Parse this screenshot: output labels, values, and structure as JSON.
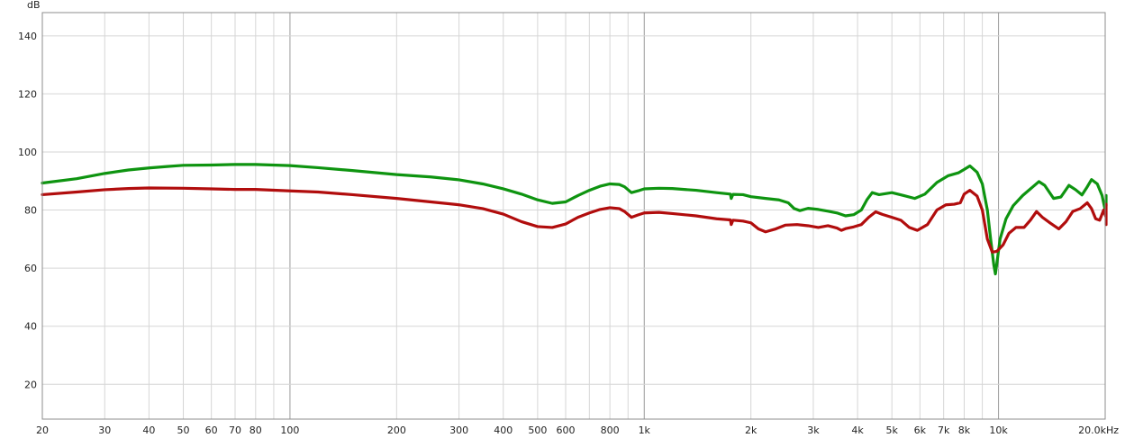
{
  "chart_data": {
    "type": "line",
    "title": "",
    "xlabel": "",
    "ylabel": "",
    "y_unit": "dB",
    "x_scale": "log",
    "xlim": [
      20,
      20000
    ],
    "ylim": [
      8,
      148
    ],
    "grid": true,
    "x_ticks": [
      {
        "value": 20,
        "label": "20"
      },
      {
        "value": 30,
        "label": "30"
      },
      {
        "value": 40,
        "label": "40"
      },
      {
        "value": 50,
        "label": "50"
      },
      {
        "value": 60,
        "label": "60"
      },
      {
        "value": 70,
        "label": "70"
      },
      {
        "value": 80,
        "label": "80"
      },
      {
        "value": 90,
        "label": ""
      },
      {
        "value": 100,
        "label": "100"
      },
      {
        "value": 200,
        "label": "200"
      },
      {
        "value": 300,
        "label": "300"
      },
      {
        "value": 400,
        "label": "400"
      },
      {
        "value": 500,
        "label": "500"
      },
      {
        "value": 600,
        "label": "600"
      },
      {
        "value": 700,
        "label": ""
      },
      {
        "value": 800,
        "label": "800"
      },
      {
        "value": 900,
        "label": ""
      },
      {
        "value": 1000,
        "label": "1k"
      },
      {
        "value": 2000,
        "label": "2k"
      },
      {
        "value": 3000,
        "label": "3k"
      },
      {
        "value": 4000,
        "label": "4k"
      },
      {
        "value": 5000,
        "label": "5k"
      },
      {
        "value": 6000,
        "label": "6k"
      },
      {
        "value": 7000,
        "label": "7k"
      },
      {
        "value": 8000,
        "label": "8k"
      },
      {
        "value": 9000,
        "label": ""
      },
      {
        "value": 10000,
        "label": "10k"
      },
      {
        "value": 20000,
        "label": "20.0kHz"
      }
    ],
    "y_ticks": [
      20,
      40,
      60,
      80,
      100,
      120,
      140
    ],
    "series": [
      {
        "color": "#0e9410",
        "points": [
          [
            20,
            89.3
          ],
          [
            25,
            90.8
          ],
          [
            30,
            92.6
          ],
          [
            35,
            93.8
          ],
          [
            40,
            94.5
          ],
          [
            45,
            95.0
          ],
          [
            50,
            95.4
          ],
          [
            60,
            95.5
          ],
          [
            70,
            95.7
          ],
          [
            80,
            95.7
          ],
          [
            100,
            95.3
          ],
          [
            120,
            94.6
          ],
          [
            150,
            93.6
          ],
          [
            200,
            92.2
          ],
          [
            250,
            91.4
          ],
          [
            300,
            90.4
          ],
          [
            350,
            89.0
          ],
          [
            400,
            87.3
          ],
          [
            450,
            85.5
          ],
          [
            500,
            83.5
          ],
          [
            550,
            82.3
          ],
          [
            600,
            82.8
          ],
          [
            650,
            85.0
          ],
          [
            700,
            86.8
          ],
          [
            750,
            88.2
          ],
          [
            800,
            89.0
          ],
          [
            850,
            88.8
          ],
          [
            880,
            88.0
          ],
          [
            920,
            86.0
          ],
          [
            960,
            86.6
          ],
          [
            1000,
            87.3
          ],
          [
            1100,
            87.5
          ],
          [
            1200,
            87.4
          ],
          [
            1400,
            86.8
          ],
          [
            1600,
            86.0
          ],
          [
            1750,
            85.5
          ],
          [
            1760,
            84.0
          ],
          [
            1780,
            85.4
          ],
          [
            1900,
            85.3
          ],
          [
            2000,
            84.6
          ],
          [
            2200,
            84.0
          ],
          [
            2400,
            83.5
          ],
          [
            2550,
            82.5
          ],
          [
            2650,
            80.5
          ],
          [
            2750,
            79.8
          ],
          [
            2900,
            80.6
          ],
          [
            3100,
            80.2
          ],
          [
            3300,
            79.6
          ],
          [
            3500,
            79.0
          ],
          [
            3700,
            78.0
          ],
          [
            3900,
            78.4
          ],
          [
            4100,
            80.0
          ],
          [
            4250,
            83.5
          ],
          [
            4400,
            86.0
          ],
          [
            4600,
            85.3
          ],
          [
            5000,
            86.0
          ],
          [
            5400,
            85.0
          ],
          [
            5800,
            84.0
          ],
          [
            6200,
            85.5
          ],
          [
            6700,
            89.5
          ],
          [
            7200,
            91.8
          ],
          [
            7700,
            92.8
          ],
          [
            8000,
            94.0
          ],
          [
            8300,
            95.2
          ],
          [
            8700,
            93.0
          ],
          [
            9000,
            89.0
          ],
          [
            9300,
            80.0
          ],
          [
            9500,
            70.0
          ],
          [
            9700,
            61.0
          ],
          [
            9800,
            58.0
          ],
          [
            9900,
            62.0
          ],
          [
            10100,
            70.0
          ],
          [
            10500,
            77.0
          ],
          [
            11000,
            81.5
          ],
          [
            11700,
            85.0
          ],
          [
            12500,
            88.0
          ],
          [
            13000,
            89.8
          ],
          [
            13500,
            88.5
          ],
          [
            14300,
            84.0
          ],
          [
            15000,
            84.5
          ],
          [
            15800,
            88.5
          ],
          [
            16500,
            87.0
          ],
          [
            17200,
            85.2
          ],
          [
            17800,
            88.0
          ],
          [
            18300,
            90.5
          ],
          [
            19000,
            89.0
          ],
          [
            19600,
            85.0
          ],
          [
            20000,
            80.0
          ],
          [
            20500,
            81.5
          ],
          [
            21200,
            84.5
          ],
          [
            22000,
            85.0
          ]
        ]
      },
      {
        "color": "#b10d0d",
        "points": [
          [
            20,
            85.3
          ],
          [
            25,
            86.2
          ],
          [
            30,
            87.0
          ],
          [
            35,
            87.4
          ],
          [
            40,
            87.6
          ],
          [
            50,
            87.5
          ],
          [
            60,
            87.3
          ],
          [
            70,
            87.1
          ],
          [
            80,
            87.1
          ],
          [
            100,
            86.6
          ],
          [
            120,
            86.2
          ],
          [
            150,
            85.3
          ],
          [
            200,
            84.0
          ],
          [
            250,
            82.8
          ],
          [
            300,
            81.8
          ],
          [
            350,
            80.5
          ],
          [
            400,
            78.6
          ],
          [
            450,
            76.0
          ],
          [
            500,
            74.3
          ],
          [
            550,
            74.0
          ],
          [
            600,
            75.2
          ],
          [
            650,
            77.5
          ],
          [
            700,
            79.0
          ],
          [
            750,
            80.2
          ],
          [
            800,
            80.8
          ],
          [
            850,
            80.5
          ],
          [
            880,
            79.5
          ],
          [
            920,
            77.5
          ],
          [
            960,
            78.3
          ],
          [
            1000,
            79.0
          ],
          [
            1100,
            79.2
          ],
          [
            1200,
            78.8
          ],
          [
            1400,
            78.0
          ],
          [
            1600,
            77.0
          ],
          [
            1750,
            76.6
          ],
          [
            1760,
            75.0
          ],
          [
            1780,
            76.5
          ],
          [
            1900,
            76.2
          ],
          [
            2000,
            75.6
          ],
          [
            2100,
            73.5
          ],
          [
            2200,
            72.5
          ],
          [
            2350,
            73.5
          ],
          [
            2500,
            74.8
          ],
          [
            2700,
            75.0
          ],
          [
            2900,
            74.6
          ],
          [
            3100,
            74.0
          ],
          [
            3300,
            74.6
          ],
          [
            3500,
            73.8
          ],
          [
            3600,
            73.0
          ],
          [
            3700,
            73.6
          ],
          [
            3900,
            74.2
          ],
          [
            4100,
            75.0
          ],
          [
            4300,
            77.5
          ],
          [
            4500,
            79.4
          ],
          [
            4700,
            78.5
          ],
          [
            5000,
            77.5
          ],
          [
            5300,
            76.5
          ],
          [
            5600,
            74.0
          ],
          [
            5900,
            73.0
          ],
          [
            6300,
            75.0
          ],
          [
            6700,
            80.0
          ],
          [
            7100,
            81.8
          ],
          [
            7500,
            82.0
          ],
          [
            7800,
            82.5
          ],
          [
            8000,
            85.5
          ],
          [
            8300,
            86.8
          ],
          [
            8700,
            84.8
          ],
          [
            9000,
            80.0
          ],
          [
            9300,
            70.0
          ],
          [
            9600,
            65.5
          ],
          [
            9900,
            65.8
          ],
          [
            10300,
            68.0
          ],
          [
            10700,
            72.0
          ],
          [
            11200,
            74.0
          ],
          [
            11800,
            74.0
          ],
          [
            12300,
            76.5
          ],
          [
            12800,
            79.5
          ],
          [
            13300,
            77.5
          ],
          [
            14000,
            75.5
          ],
          [
            14800,
            73.5
          ],
          [
            15500,
            76.0
          ],
          [
            16200,
            79.5
          ],
          [
            17000,
            80.5
          ],
          [
            17800,
            82.5
          ],
          [
            18300,
            80.5
          ],
          [
            18800,
            77.0
          ],
          [
            19300,
            76.5
          ],
          [
            19800,
            80.0
          ],
          [
            20300,
            77.5
          ],
          [
            20800,
            75.0
          ],
          [
            21400,
            76.5
          ],
          [
            22000,
            82.0
          ]
        ]
      }
    ]
  }
}
